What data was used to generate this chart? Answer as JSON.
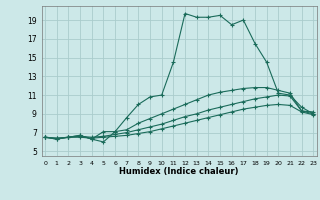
{
  "xlabel": "Humidex (Indice chaleur)",
  "bg_color": "#cce8e8",
  "grid_color": "#aacccc",
  "line_color": "#1a6b5a",
  "x_ticks": [
    0,
    1,
    2,
    3,
    4,
    5,
    6,
    7,
    8,
    9,
    10,
    11,
    12,
    13,
    14,
    15,
    16,
    17,
    18,
    19,
    20,
    21,
    22,
    23
  ],
  "y_ticks": [
    5,
    7,
    9,
    11,
    13,
    15,
    17,
    19
  ],
  "xlim": [
    -0.3,
    23.3
  ],
  "ylim": [
    4.5,
    20.5
  ],
  "series": [
    [
      6.5,
      6.3,
      6.5,
      6.7,
      6.3,
      6.0,
      7.1,
      8.6,
      10.0,
      10.8,
      11.0,
      14.5,
      19.7,
      19.3,
      19.3,
      19.5,
      18.5,
      19.0,
      16.5,
      14.5,
      11.2,
      11.0,
      9.7,
      9.0
    ],
    [
      6.5,
      6.3,
      6.5,
      6.7,
      6.3,
      7.1,
      7.1,
      7.3,
      8.0,
      8.5,
      9.0,
      9.5,
      10.0,
      10.5,
      11.0,
      11.3,
      11.5,
      11.7,
      11.8,
      11.8,
      11.5,
      11.2,
      9.3,
      9.2
    ],
    [
      6.5,
      6.4,
      6.5,
      6.6,
      6.5,
      6.6,
      6.8,
      7.0,
      7.3,
      7.6,
      7.9,
      8.3,
      8.7,
      9.0,
      9.4,
      9.7,
      10.0,
      10.3,
      10.6,
      10.8,
      11.0,
      10.9,
      9.3,
      9.0
    ],
    [
      6.5,
      6.4,
      6.5,
      6.5,
      6.4,
      6.5,
      6.6,
      6.7,
      6.9,
      7.1,
      7.4,
      7.7,
      8.0,
      8.3,
      8.6,
      8.9,
      9.2,
      9.5,
      9.7,
      9.9,
      10.0,
      9.9,
      9.2,
      8.9
    ]
  ]
}
